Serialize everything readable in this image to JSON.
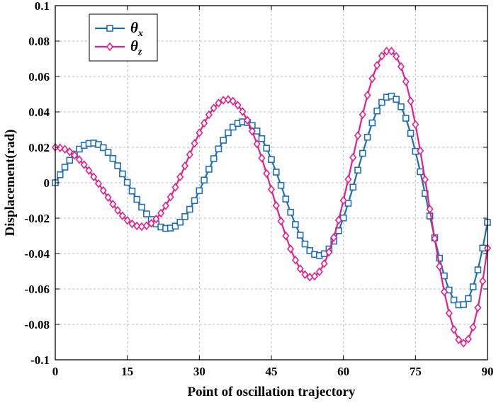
{
  "chart_data": {
    "type": "line",
    "title": "",
    "xlabel": "Point of oscillation trajectory",
    "ylabel": "Displacement(rad)",
    "xlim": [
      0,
      90
    ],
    "ylim": [
      -0.1,
      0.1
    ],
    "x_ticks": [
      0,
      15,
      30,
      45,
      60,
      75,
      90
    ],
    "y_ticks": [
      -0.1,
      -0.08,
      -0.06,
      -0.04,
      -0.02,
      0,
      0.02,
      0.04,
      0.06,
      0.08,
      0.1
    ],
    "x_tick_labels": [
      "0",
      "15",
      "30",
      "45",
      "60",
      "75",
      "90"
    ],
    "y_tick_labels": [
      "-0.1",
      "-0.08",
      "-0.06",
      "-0.04",
      "-0.02",
      "0",
      "0.02",
      "0.04",
      "0.06",
      "0.08",
      "0.1"
    ],
    "grid": true,
    "legend_position": "top-left",
    "series": [
      {
        "name": "θx",
        "label_base": "θ",
        "label_sub": "x",
        "color": "#1f6eb4",
        "marker": "square",
        "x": [
          0,
          1,
          2,
          3,
          4,
          5,
          6,
          7,
          8,
          9,
          10,
          11,
          12,
          13,
          14,
          15,
          16,
          17,
          18,
          19,
          20,
          21,
          22,
          23,
          24,
          25,
          26,
          27,
          28,
          29,
          30,
          31,
          32,
          33,
          34,
          35,
          36,
          37,
          38,
          39,
          40,
          41,
          42,
          43,
          44,
          45,
          46,
          47,
          48,
          49,
          50,
          51,
          52,
          53,
          54,
          55,
          56,
          57,
          58,
          59,
          60,
          61,
          62,
          63,
          64,
          65,
          66,
          67,
          68,
          69,
          70,
          71,
          72,
          73,
          74,
          75,
          76,
          77,
          78,
          79,
          80,
          81,
          82,
          83,
          84,
          85,
          86,
          87,
          88,
          89,
          90
        ],
        "y": [
          0,
          0.0045,
          0.0088,
          0.0127,
          0.0162,
          0.019,
          0.0211,
          0.0222,
          0.0224,
          0.0216,
          0.0198,
          0.0171,
          0.0137,
          0.0096,
          0.005,
          0.0002,
          -0.0047,
          -0.0094,
          -0.0138,
          -0.0176,
          -0.0208,
          -0.0233,
          -0.025,
          -0.0258,
          -0.0256,
          -0.0245,
          -0.0223,
          -0.0191,
          -0.015,
          -0.0101,
          -0.0045,
          0.0015,
          0.0076,
          0.0136,
          0.0191,
          0.024,
          0.0282,
          0.0314,
          0.0335,
          0.0344,
          0.034,
          0.0323,
          0.0292,
          0.0249,
          0.0195,
          0.0131,
          0.006,
          -0.0015,
          -0.0092,
          -0.0167,
          -0.0236,
          -0.0296,
          -0.0346,
          -0.0383,
          -0.0405,
          -0.0411,
          -0.0401,
          -0.0374,
          -0.033,
          -0.0271,
          -0.0199,
          -0.0116,
          -0.0025,
          0.0071,
          0.0166,
          0.0257,
          0.0338,
          0.0405,
          0.0454,
          0.0483,
          0.0489,
          0.0471,
          0.0429,
          0.0364,
          0.0279,
          0.0177,
          0.0062,
          -0.0061,
          -0.0188,
          -0.0311,
          -0.0426,
          -0.0526,
          -0.0606,
          -0.0662,
          -0.069,
          -0.0688,
          -0.0654,
          -0.0588,
          -0.0492,
          -0.0369,
          -0.0224
        ]
      },
      {
        "name": "θz",
        "label_base": "θ",
        "label_sub": "z",
        "color": "#e0218a",
        "marker": "diamond",
        "x": [
          0,
          1,
          2,
          3,
          4,
          5,
          6,
          7,
          8,
          9,
          10,
          11,
          12,
          13,
          14,
          15,
          16,
          17,
          18,
          19,
          20,
          21,
          22,
          23,
          24,
          25,
          26,
          27,
          28,
          29,
          30,
          31,
          32,
          33,
          34,
          35,
          36,
          37,
          38,
          39,
          40,
          41,
          42,
          43,
          44,
          45,
          46,
          47,
          48,
          49,
          50,
          51,
          52,
          53,
          54,
          55,
          56,
          57,
          58,
          59,
          60,
          61,
          62,
          63,
          64,
          65,
          66,
          67,
          68,
          69,
          70,
          71,
          72,
          73,
          74,
          75,
          76,
          77,
          78,
          79,
          80,
          81,
          82,
          83,
          84,
          85,
          86,
          87,
          88,
          89,
          90
        ],
        "y": [
          0.02,
          0.0197,
          0.0189,
          0.0175,
          0.0155,
          0.0131,
          0.0102,
          0.0069,
          0.0033,
          -0.0005,
          -0.0044,
          -0.0083,
          -0.0121,
          -0.0156,
          -0.0187,
          -0.0213,
          -0.0232,
          -0.0244,
          -0.0248,
          -0.0243,
          -0.0229,
          -0.0205,
          -0.0172,
          -0.013,
          -0.0081,
          -0.0026,
          0.0033,
          0.0095,
          0.0159,
          0.0222,
          0.0282,
          0.0336,
          0.0384,
          0.0422,
          0.045,
          0.0466,
          0.047,
          0.0461,
          0.0438,
          0.0402,
          0.0353,
          0.0291,
          0.0219,
          0.0139,
          0.0052,
          -0.0038,
          -0.0129,
          -0.0217,
          -0.03,
          -0.0374,
          -0.0437,
          -0.0486,
          -0.0519,
          -0.0533,
          -0.0528,
          -0.0503,
          -0.0457,
          -0.0392,
          -0.0309,
          -0.0211,
          -0.01,
          0.0019,
          0.0143,
          0.0266,
          0.0385,
          0.0494,
          0.0588,
          0.0663,
          0.0716,
          0.0743,
          0.0743,
          0.0714,
          0.0656,
          0.0571,
          0.0461,
          0.0329,
          0.018,
          0.0018,
          -0.0149,
          -0.0315,
          -0.0473,
          -0.0616,
          -0.0737,
          -0.0829,
          -0.0887,
          -0.0906,
          -0.0883,
          -0.0816,
          -0.0706,
          -0.0556,
          -0.037
        ]
      }
    ]
  }
}
